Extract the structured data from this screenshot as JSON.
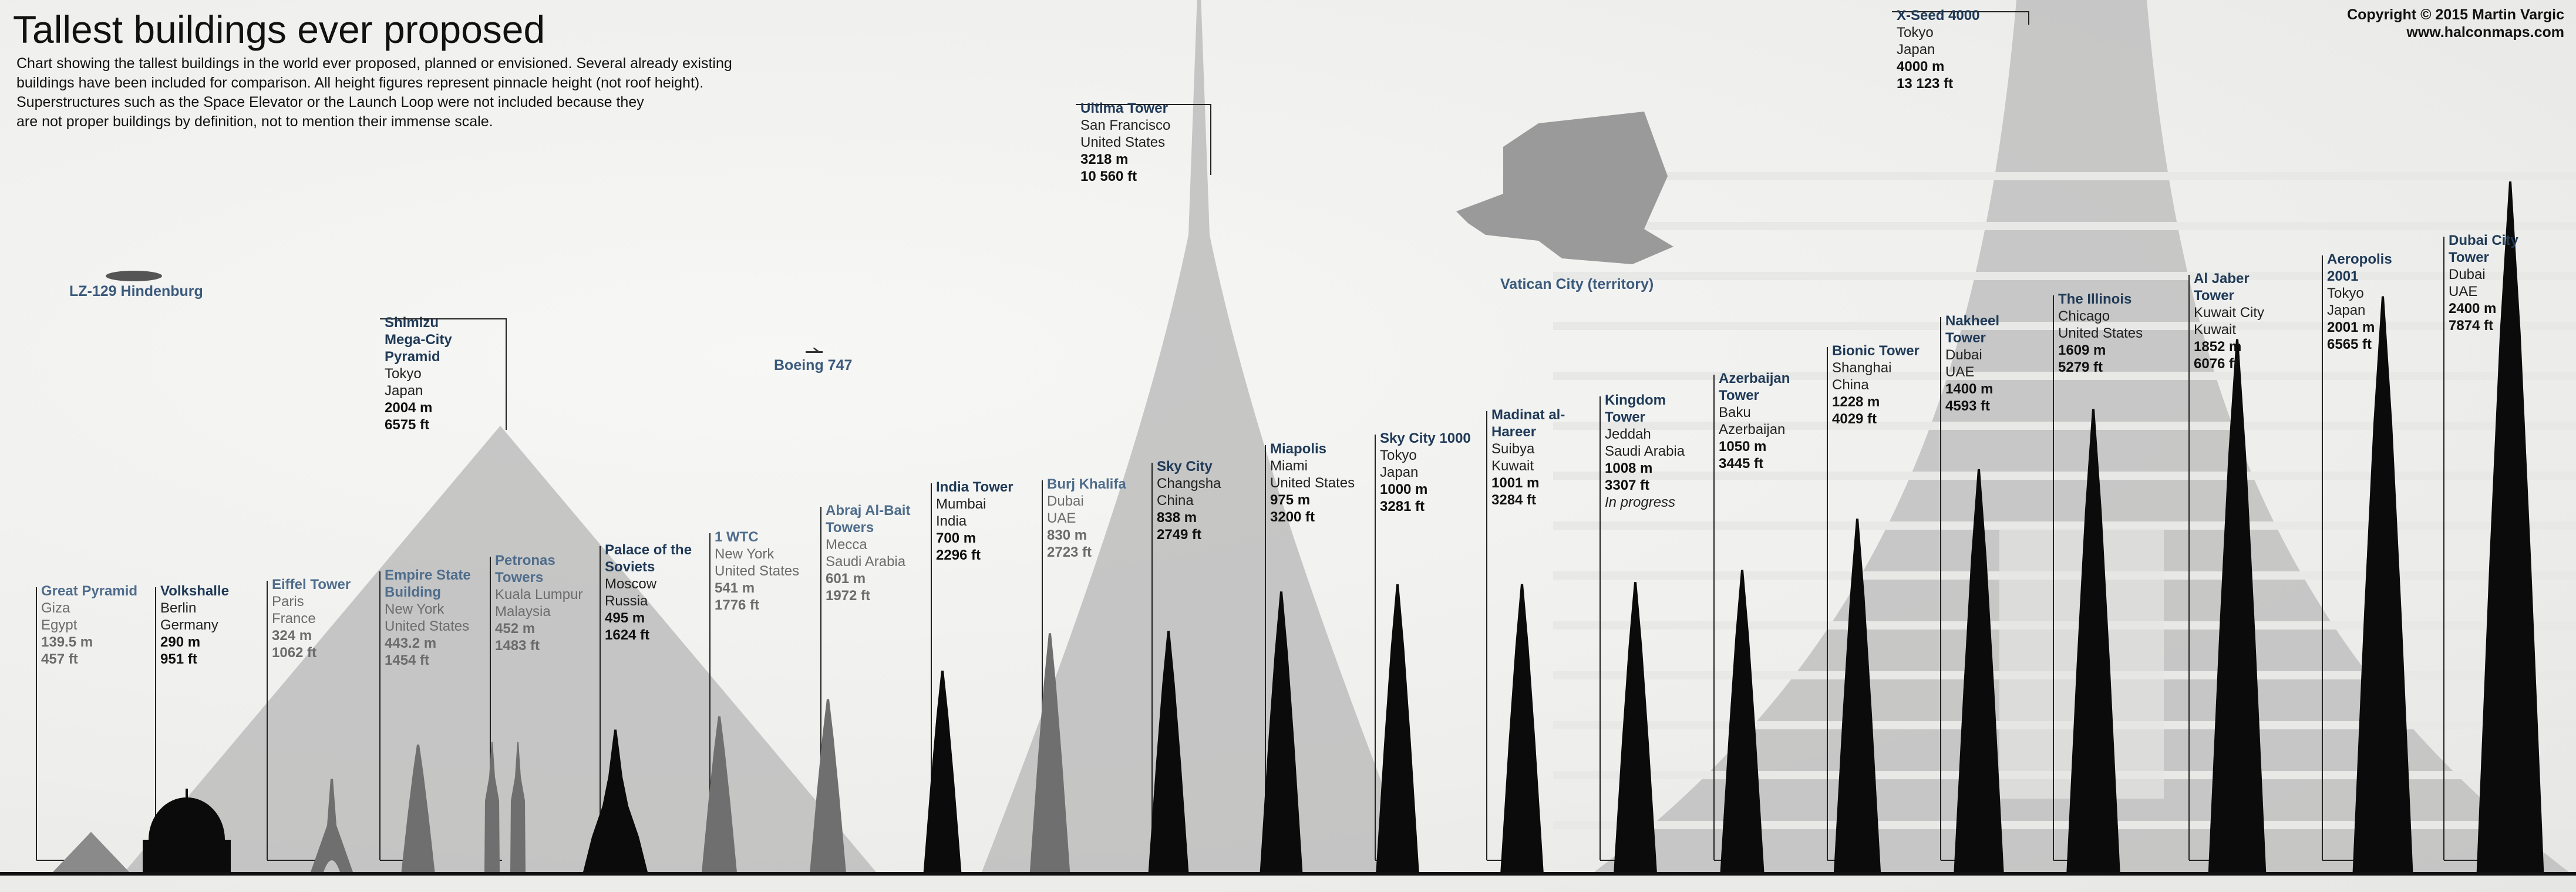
{
  "title": "Tallest buildings ever proposed",
  "description": [
    "Chart showing the tallest buildings in the world ever proposed, planned or envisioned. Several already existing",
    "buildings have been included for comparison. All height figures represent pinnacle height (not roof height).",
    "Superstructures such as the Space Elevator or the Launch Loop were not included because they",
    "are not proper buildings by definition, not to mention their immense scale."
  ],
  "copyright": [
    "Copyright © 2015 Martin Vargic",
    "www.halconmaps.com"
  ],
  "colors": {
    "existing": "#6f6f6f",
    "proposed": "#0b0b0b",
    "mega": "#bdbdbd",
    "label_blue": "#1f3a57"
  },
  "chart_data": {
    "type": "bar",
    "title": "Tallest buildings ever proposed",
    "unit": "m",
    "items": [
      {
        "name": "Great Pyramid",
        "lines": [
          "Giza",
          "Egypt"
        ],
        "height_m": 139.5,
        "m": "139.5 m",
        "ft": "457 ft",
        "kind": "existing"
      },
      {
        "name": "Volkshalle",
        "lines": [
          "Berlin",
          "Germany"
        ],
        "height_m": 290,
        "m": "290 m",
        "ft": "951 ft",
        "kind": "proposed"
      },
      {
        "name": "Eiffel Tower",
        "lines": [
          "Paris",
          "France"
        ],
        "height_m": 324,
        "m": "324 m",
        "ft": "1062 ft",
        "kind": "existing"
      },
      {
        "name": "Empire State Building",
        "lines": [
          "New York",
          "United States"
        ],
        "height_m": 443.2,
        "m": "443.2 m",
        "ft": "1454 ft",
        "kind": "existing"
      },
      {
        "name": "Petronas Towers",
        "lines": [
          "Kuala Lumpur",
          "Malaysia"
        ],
        "height_m": 452,
        "m": "452 m",
        "ft": "1483 ft",
        "kind": "existing"
      },
      {
        "name": "Palace of the Soviets",
        "lines": [
          "Moscow",
          "Russia"
        ],
        "height_m": 495,
        "m": "495 m",
        "ft": "1624 ft",
        "kind": "proposed"
      },
      {
        "name": "1 WTC",
        "lines": [
          "New York",
          "United States"
        ],
        "height_m": 541,
        "m": "541 m",
        "ft": "1776 ft",
        "kind": "existing"
      },
      {
        "name": "Abraj Al-Bait Towers",
        "lines": [
          "Mecca",
          "Saudi Arabia"
        ],
        "height_m": 601,
        "m": "601 m",
        "ft": "1972 ft",
        "kind": "existing"
      },
      {
        "name": "India Tower",
        "lines": [
          "Mumbai",
          "India"
        ],
        "height_m": 700,
        "m": "700 m",
        "ft": "2296 ft",
        "kind": "proposed"
      },
      {
        "name": "Burj Khalifa",
        "lines": [
          "Dubai",
          "UAE"
        ],
        "height_m": 830,
        "m": "830 m",
        "ft": "2723 ft",
        "kind": "existing"
      },
      {
        "name": "Sky City",
        "lines": [
          "Changsha",
          "China"
        ],
        "height_m": 838,
        "m": "838 m",
        "ft": "2749 ft",
        "kind": "proposed"
      },
      {
        "name": "Miapolis",
        "lines": [
          "Miami",
          "United States"
        ],
        "height_m": 975,
        "m": "975 m",
        "ft": "3200 ft",
        "kind": "proposed"
      },
      {
        "name": "Sky City 1000",
        "lines": [
          "Tokyo",
          "Japan"
        ],
        "height_m": 1000,
        "m": "1000 m",
        "ft": "3281 ft",
        "kind": "proposed"
      },
      {
        "name": "Madinat al-Hareer",
        "lines": [
          "Suibya",
          "Kuwait"
        ],
        "height_m": 1001,
        "m": "1001 m",
        "ft": "3284 ft",
        "kind": "proposed"
      },
      {
        "name": "Kingdom Tower",
        "lines": [
          "Jeddah",
          "Saudi Arabia"
        ],
        "height_m": 1008,
        "m": "1008 m",
        "ft": "3307 ft",
        "note": "In progress",
        "kind": "proposed"
      },
      {
        "name": "Azerbaijan Tower",
        "lines": [
          "Baku",
          "Azerbaijan"
        ],
        "height_m": 1050,
        "m": "1050 m",
        "ft": "3445 ft",
        "kind": "proposed"
      },
      {
        "name": "Bionic Tower",
        "lines": [
          "Shanghai",
          "China"
        ],
        "height_m": 1228,
        "m": "1228 m",
        "ft": "4029 ft",
        "kind": "proposed"
      },
      {
        "name": "Nakheel Tower",
        "lines": [
          "Dubai",
          "UAE"
        ],
        "height_m": 1400,
        "m": "1400 m",
        "ft": "4593 ft",
        "kind": "proposed"
      },
      {
        "name": "The Illinois",
        "lines": [
          "Chicago",
          "United States"
        ],
        "height_m": 1609,
        "m": "1609 m",
        "ft": "5279 ft",
        "kind": "proposed"
      },
      {
        "name": "Al Jaber Tower",
        "lines": [
          "Kuwait City",
          "Kuwait"
        ],
        "height_m": 1852,
        "m": "1852 m",
        "ft": "6076 ft",
        "kind": "proposed"
      },
      {
        "name": "Aeropolis 2001",
        "lines": [
          "Tokyo",
          "Japan"
        ],
        "height_m": 2001,
        "m": "2001 m",
        "ft": "6565 ft",
        "kind": "proposed"
      },
      {
        "name": "Dubai City Tower",
        "lines": [
          "Dubai",
          "UAE"
        ],
        "height_m": 2400,
        "m": "2400 m",
        "ft": "7874 ft",
        "kind": "proposed"
      }
    ],
    "megastructures": [
      {
        "name": "Shimizu Mega-City Pyramid",
        "lines": [
          "Tokyo",
          "Japan"
        ],
        "height_m": 2004,
        "m": "2004 m",
        "ft": "6575 ft"
      },
      {
        "name": "Ultima Tower",
        "lines": [
          "San Francisco",
          "United States"
        ],
        "height_m": 3218,
        "m": "3218 m",
        "ft": "10 560 ft"
      },
      {
        "name": "X-Seed 4000",
        "lines": [
          "Tokyo",
          "Japan"
        ],
        "height_m": 4000,
        "m": "4000 m",
        "ft": "13 123 ft"
      }
    ],
    "references": [
      "LZ-129 Hindenburg",
      "Boeing 747",
      "Vatican City (territory)"
    ]
  }
}
